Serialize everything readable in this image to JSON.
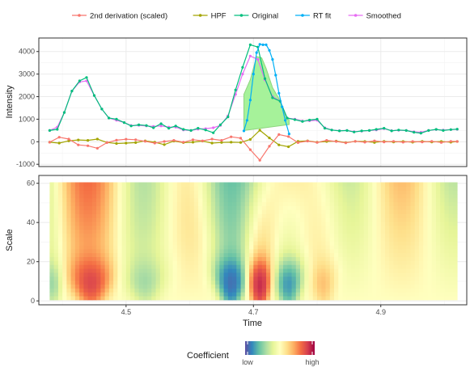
{
  "chart_data": [
    {
      "type": "line",
      "ylabel": "Intensity",
      "xlim": [
        4.363,
        5.035
      ],
      "ylim": [
        -1100,
        4600
      ],
      "yticks": [
        -1000,
        0,
        1000,
        2000,
        3000,
        4000
      ],
      "grid": true,
      "legend_position": "top",
      "legend": [
        "2nd derivation (scaled)",
        "HPF",
        "Original",
        "RT fit",
        "Smoothed"
      ],
      "fit_area": {
        "color": "#A6F29A",
        "outline_color": "#8FD47F",
        "x": [
          4.685,
          4.695,
          4.705,
          4.713,
          4.72,
          4.73,
          4.74,
          4.75,
          4.756
        ],
        "y_top": [
          2100,
          2750,
          3780,
          3720,
          3250,
          2400,
          1920,
          1180,
          960
        ],
        "baseline_start": [
          4.685,
          500
        ],
        "baseline_end": [
          4.756,
          760
        ]
      },
      "series": [
        {
          "name": "2nd derivation (scaled)",
          "color": "#F8766D",
          "x": [
            4.38,
            4.395,
            4.41,
            4.425,
            4.44,
            4.455,
            4.47,
            4.485,
            4.5,
            4.515,
            4.53,
            4.545,
            4.56,
            4.575,
            4.59,
            4.605,
            4.62,
            4.635,
            4.65,
            4.665,
            4.68,
            4.695,
            4.71,
            4.725,
            4.74,
            4.755,
            4.77,
            4.785,
            4.8,
            4.815,
            4.83,
            4.845,
            4.86,
            4.875,
            4.89,
            4.905,
            4.92,
            4.935,
            4.95,
            4.965,
            4.98,
            4.995,
            5.01,
            5.02
          ],
          "values": [
            -20,
            200,
            120,
            -140,
            -180,
            -290,
            -40,
            70,
            110,
            90,
            20,
            -60,
            10,
            60,
            -20,
            90,
            40,
            120,
            60,
            220,
            160,
            -350,
            -820,
            -200,
            320,
            230,
            -40,
            30,
            -30,
            60,
            10,
            -50,
            20,
            -20,
            40,
            -10,
            20,
            -20,
            10,
            -10,
            20,
            -30,
            20,
            10
          ]
        },
        {
          "name": "HPF",
          "color": "#A3A500",
          "x": [
            4.38,
            4.395,
            4.41,
            4.425,
            4.44,
            4.455,
            4.47,
            4.485,
            4.5,
            4.515,
            4.53,
            4.545,
            4.56,
            4.575,
            4.59,
            4.605,
            4.62,
            4.635,
            4.65,
            4.665,
            4.68,
            4.695,
            4.71,
            4.725,
            4.74,
            4.755,
            4.77,
            4.785,
            4.8,
            4.815,
            4.83,
            4.845,
            4.86,
            4.875,
            4.89,
            4.905,
            4.92,
            4.935,
            4.95,
            4.965,
            4.98,
            4.995,
            5.01,
            5.02
          ],
          "values": [
            -20,
            -60,
            40,
            80,
            60,
            120,
            -30,
            -80,
            -60,
            -40,
            40,
            -20,
            -130,
            30,
            -40,
            -20,
            30,
            -60,
            -30,
            -20,
            -30,
            100,
            510,
            170,
            -140,
            -220,
            20,
            40,
            -20,
            10,
            30,
            -40,
            20,
            10,
            -30,
            20,
            -10,
            10,
            -20,
            20,
            -10,
            10,
            -20,
            10
          ]
        },
        {
          "name": "Original",
          "color": "#00BF7D",
          "x": [
            4.38,
            4.392,
            4.403,
            4.415,
            4.427,
            4.438,
            4.45,
            4.462,
            4.473,
            4.485,
            4.497,
            4.508,
            4.52,
            4.532,
            4.543,
            4.555,
            4.567,
            4.578,
            4.59,
            4.602,
            4.613,
            4.625,
            4.637,
            4.648,
            4.66,
            4.672,
            4.683,
            4.695,
            4.707,
            4.718,
            4.73,
            4.742,
            4.753,
            4.765,
            4.777,
            4.788,
            4.8,
            4.812,
            4.823,
            4.835,
            4.847,
            4.858,
            4.87,
            4.882,
            4.893,
            4.905,
            4.917,
            4.928,
            4.94,
            4.952,
            4.963,
            4.975,
            4.987,
            4.998,
            5.01,
            5.02
          ],
          "values": [
            500,
            550,
            1300,
            2250,
            2700,
            2850,
            2050,
            1450,
            1050,
            1000,
            850,
            700,
            750,
            720,
            620,
            800,
            600,
            700,
            550,
            500,
            600,
            520,
            400,
            750,
            1100,
            2300,
            3300,
            4300,
            4200,
            2800,
            1950,
            1800,
            1050,
            980,
            900,
            960,
            1000,
            600,
            520,
            480,
            500,
            430,
            480,
            500,
            550,
            600,
            480,
            520,
            500,
            420,
            380,
            500,
            550,
            500,
            540,
            560
          ]
        },
        {
          "name": "RT fit",
          "color": "#00B0F6",
          "x": [
            4.685,
            4.69,
            4.695,
            4.7,
            4.705,
            4.71,
            4.715,
            4.72,
            4.725,
            4.73,
            4.735,
            4.74,
            4.745,
            4.75,
            4.756
          ],
          "values": [
            480,
            950,
            1850,
            3000,
            3950,
            4320,
            4300,
            4300,
            4050,
            3650,
            2950,
            2150,
            1550,
            950,
            350
          ]
        },
        {
          "name": "Smoothed",
          "color": "#E76BF3",
          "x": [
            4.38,
            4.392,
            4.403,
            4.415,
            4.427,
            4.438,
            4.45,
            4.462,
            4.473,
            4.485,
            4.497,
            4.508,
            4.52,
            4.532,
            4.543,
            4.555,
            4.567,
            4.578,
            4.59,
            4.602,
            4.613,
            4.625,
            4.637,
            4.648,
            4.66,
            4.672,
            4.683,
            4.695,
            4.707,
            4.718,
            4.73,
            4.742,
            4.753,
            4.765,
            4.777,
            4.788,
            4.8,
            4.812,
            4.823,
            4.835,
            4.847,
            4.858,
            4.87,
            4.882,
            4.893,
            4.905,
            4.917,
            4.928,
            4.94,
            4.952,
            4.963,
            4.975,
            4.987,
            4.998,
            5.01,
            5.02
          ],
          "values": [
            500,
            650,
            1300,
            2250,
            2650,
            2700,
            2050,
            1450,
            1050,
            950,
            850,
            720,
            730,
            700,
            680,
            700,
            650,
            650,
            520,
            500,
            560,
            580,
            620,
            720,
            1150,
            2100,
            3000,
            3800,
            3650,
            2750,
            2000,
            1800,
            1050,
            1000,
            920,
            930,
            950,
            620,
            520,
            490,
            500,
            450,
            470,
            500,
            520,
            580,
            490,
            510,
            500,
            440,
            420,
            500,
            540,
            520,
            540,
            550
          ]
        }
      ]
    },
    {
      "type": "heatmap",
      "xlabel": "Time",
      "ylabel": "Scale",
      "xlim": [
        4.363,
        5.035
      ],
      "ylim": [
        -2,
        64
      ],
      "xticks": [
        4.5,
        4.7,
        4.9
      ],
      "yticks": [
        0,
        20,
        40,
        60
      ],
      "x_range": [
        4.38,
        5.02
      ],
      "scale_range": [
        1,
        60
      ],
      "legend_title": "Coefficient",
      "legend_low": "low",
      "legend_high": "high",
      "color_scale": [
        "#5E4FA2",
        "#3288BD",
        "#66C2A5",
        "#ABDDA4",
        "#E6F598",
        "#FFFFBF",
        "#FEE08B",
        "#FDAE61",
        "#F46D43",
        "#D53E4F",
        "#9E0142"
      ],
      "features": [
        {
          "center": 4.445,
          "width": 0.03,
          "sign": 1,
          "strength": 0.7
        },
        {
          "center": 4.71,
          "width": 0.018,
          "sign": 1,
          "strength": 1.0
        },
        {
          "center": 4.665,
          "width": 0.022,
          "sign": -1,
          "strength": 1.0
        },
        {
          "center": 4.755,
          "width": 0.022,
          "sign": -1,
          "strength": 0.75
        },
        {
          "center": 4.81,
          "width": 0.02,
          "sign": 1,
          "strength": 0.25
        },
        {
          "center": 4.53,
          "width": 0.03,
          "sign": -1,
          "strength": 0.3
        },
        {
          "center": 4.385,
          "width": 0.015,
          "sign": -1,
          "strength": 0.35
        }
      ]
    }
  ]
}
